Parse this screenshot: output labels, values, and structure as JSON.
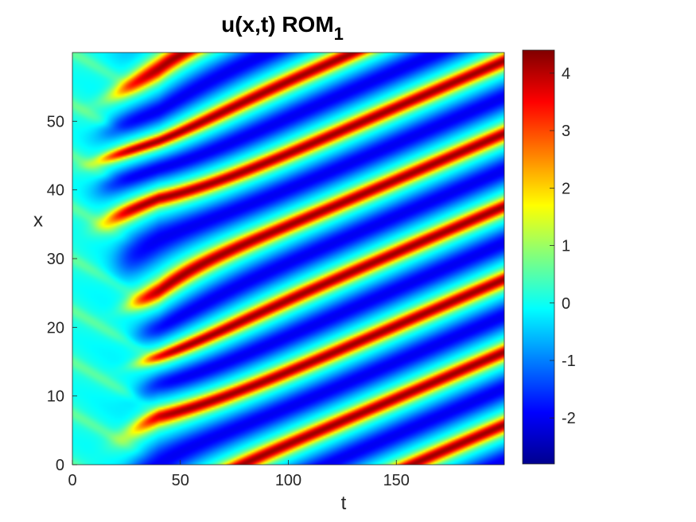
{
  "chart_data": {
    "type": "heatmap",
    "title": "u(x,t) ROM",
    "title_subscript": "1",
    "xlabel": "t",
    "ylabel": "x",
    "xlim": [
      0,
      200
    ],
    "ylim": [
      0,
      60
    ],
    "xticks": [
      0,
      50,
      100,
      150
    ],
    "xtick_labels": [
      "0",
      "50",
      "100",
      "150"
    ],
    "yticks": [
      0,
      10,
      20,
      30,
      40,
      50
    ],
    "ytick_labels": [
      "0",
      "10",
      "20",
      "30",
      "40",
      "50"
    ],
    "colorbar": {
      "colormap": "jet",
      "clim": [
        -2.8,
        4.4
      ],
      "ticks": [
        -2,
        -1,
        0,
        1,
        2,
        3,
        4
      ],
      "tick_labels": [
        "-2",
        "-1",
        "0",
        "1",
        "2",
        "3",
        "4"
      ],
      "placement": "right"
    },
    "field_description": "traveling-wave pattern: transient region near t<40, then diagonal stripes moving upward in x with increasing t",
    "grid": false
  }
}
